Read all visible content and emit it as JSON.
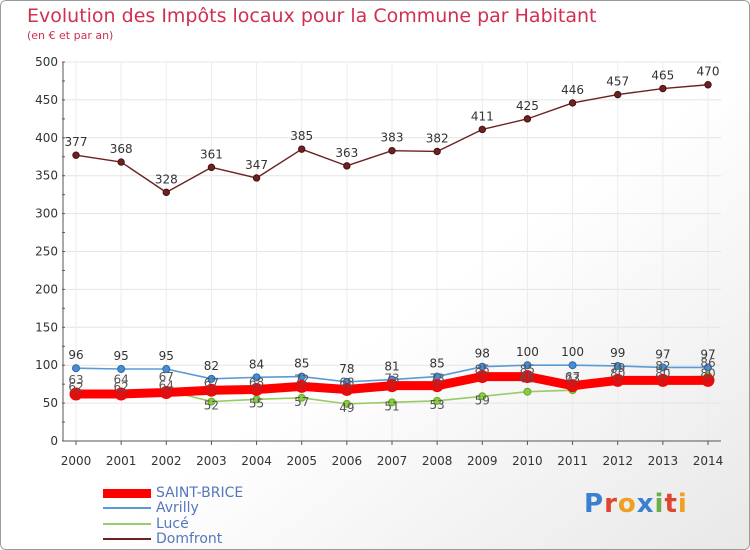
{
  "header": {
    "title": "Evolution des Impôts locaux pour la Commune par Habitant",
    "subtitle": "(en € et par an)"
  },
  "brand": "Proxiti",
  "chart_data": {
    "type": "line",
    "title": "Evolution des Impôts locaux pour la Commune par Habitant",
    "subtitle": "(en € et par an)",
    "xlabel": "",
    "ylabel": "",
    "x": [
      "2000",
      "2001",
      "2002",
      "2003",
      "2004",
      "2005",
      "2006",
      "2007",
      "2008",
      "2009",
      "2010",
      "2011",
      "2012",
      "2013",
      "2014"
    ],
    "ylim": [
      0,
      500
    ],
    "yticks": [
      0,
      50,
      100,
      150,
      200,
      250,
      300,
      350,
      400,
      450,
      500
    ],
    "grid": true,
    "legend_position": "bottom-left",
    "series": [
      {
        "name": "SAINT-BRICE",
        "color": "#ff0000",
        "values": [
          62,
          62,
          64,
          67,
          68,
          72,
          68,
          73,
          73,
          85,
          85,
          73,
          80,
          80,
          80
        ]
      },
      {
        "name": "Avrilly",
        "color": "#5b9bd5",
        "values": [
          96,
          95,
          95,
          82,
          84,
          85,
          78,
          81,
          85,
          98,
          100,
          100,
          99,
          97,
          97
        ]
      },
      {
        "name": "Lucé",
        "color": "#99cc66",
        "values": [
          63,
          64,
          67,
          52,
          55,
          57,
          49,
          51,
          53,
          59,
          65,
          67,
          79,
          82,
          86
        ]
      },
      {
        "name": "Domfront",
        "color": "#6b2222",
        "values": [
          377,
          368,
          328,
          361,
          347,
          385,
          363,
          383,
          382,
          411,
          425,
          446,
          457,
          465,
          470
        ]
      }
    ]
  }
}
